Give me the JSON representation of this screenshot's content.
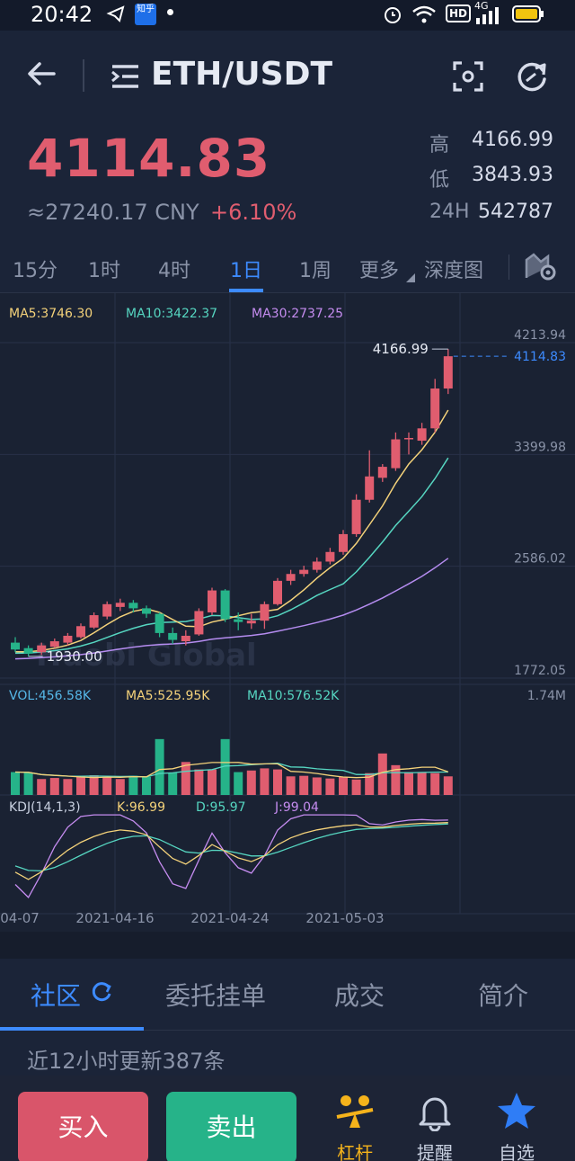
{
  "status": {
    "time": "20:42",
    "app_badge": "知乎",
    "hd": "HD",
    "net": "4G"
  },
  "header": {
    "pair": "ETH/USDT"
  },
  "price": {
    "last": "4114.83",
    "cny": "≈27240.17 CNY",
    "change": "+6.10%",
    "high_label": "高",
    "high": "4166.99",
    "low_label": "低",
    "low": "3843.93",
    "vol_label": "24H",
    "vol": "542787"
  },
  "tabs": [
    "15分",
    "1时",
    "4时",
    "1日",
    "1周",
    "更多",
    "深度图"
  ],
  "active_tab": "1日",
  "indicators": {
    "ma5": "MA5:3746.30",
    "ma10": "MA10:3422.37",
    "ma30": "MA30:2737.25",
    "vol": "VOL:456.58K",
    "vma5": "MA5:525.95K",
    "vma10": "MA10:576.52K",
    "vol_max": "1.74M",
    "kdj": "KDJ(14,1,3)",
    "k": "K:96.99",
    "d": "D:95.97",
    "j": "J:99.04"
  },
  "chart_data": {
    "type": "candlestick",
    "y_ticks": [
      "4213.94",
      "3399.98",
      "2586.02",
      "1772.05"
    ],
    "y_range": [
      1772.05,
      4213.94
    ],
    "last_price_label": "4114.83",
    "high_marker": "4166.99",
    "low_marker": "1930.00",
    "x_labels": [
      "04-07",
      "2021-04-16",
      "2021-04-24",
      "2021-05-03"
    ],
    "watermark": "Huobi Global",
    "candles": [
      {
        "o": 2030,
        "c": 1980,
        "h": 2070,
        "l": 1960
      },
      {
        "o": 1990,
        "c": 1950,
        "h": 2010,
        "l": 1930
      },
      {
        "o": 1960,
        "c": 2010,
        "h": 2030,
        "l": 1940
      },
      {
        "o": 2000,
        "c": 2040,
        "h": 2060,
        "l": 1990
      },
      {
        "o": 2030,
        "c": 2080,
        "h": 2100,
        "l": 2010
      },
      {
        "o": 2070,
        "c": 2150,
        "h": 2170,
        "l": 2060
      },
      {
        "o": 2140,
        "c": 2230,
        "h": 2250,
        "l": 2130
      },
      {
        "o": 2220,
        "c": 2310,
        "h": 2330,
        "l": 2200
      },
      {
        "o": 2290,
        "c": 2320,
        "h": 2350,
        "l": 2260
      },
      {
        "o": 2320,
        "c": 2280,
        "h": 2340,
        "l": 2250
      },
      {
        "o": 2280,
        "c": 2240,
        "h": 2300,
        "l": 2210
      },
      {
        "o": 2240,
        "c": 2100,
        "h": 2250,
        "l": 2070
      },
      {
        "o": 2100,
        "c": 2050,
        "h": 2140,
        "l": 2020
      },
      {
        "o": 2040,
        "c": 2080,
        "h": 2120,
        "l": 2010
      },
      {
        "o": 2090,
        "c": 2260,
        "h": 2280,
        "l": 2080
      },
      {
        "o": 2250,
        "c": 2410,
        "h": 2430,
        "l": 2230
      },
      {
        "o": 2410,
        "c": 2200,
        "h": 2420,
        "l": 2180
      },
      {
        "o": 2200,
        "c": 2180,
        "h": 2250,
        "l": 2120
      },
      {
        "o": 2170,
        "c": 2190,
        "h": 2240,
        "l": 2130
      },
      {
        "o": 2190,
        "c": 2310,
        "h": 2330,
        "l": 2130
      },
      {
        "o": 2310,
        "c": 2480,
        "h": 2500,
        "l": 2300
      },
      {
        "o": 2480,
        "c": 2530,
        "h": 2560,
        "l": 2450
      },
      {
        "o": 2530,
        "c": 2560,
        "h": 2590,
        "l": 2510
      },
      {
        "o": 2560,
        "c": 2620,
        "h": 2650,
        "l": 2540
      },
      {
        "o": 2620,
        "c": 2690,
        "h": 2720,
        "l": 2600
      },
      {
        "o": 2690,
        "c": 2820,
        "h": 2850,
        "l": 2670
      },
      {
        "o": 2820,
        "c": 3070,
        "h": 3110,
        "l": 2800
      },
      {
        "o": 3070,
        "c": 3240,
        "h": 3430,
        "l": 3050
      },
      {
        "o": 3230,
        "c": 3310,
        "h": 3330,
        "l": 3200
      },
      {
        "o": 3300,
        "c": 3510,
        "h": 3560,
        "l": 3280
      },
      {
        "o": 3510,
        "c": 3520,
        "h": 3560,
        "l": 3400
      },
      {
        "o": 3500,
        "c": 3590,
        "h": 3630,
        "l": 3470
      },
      {
        "o": 3590,
        "c": 3880,
        "h": 3950,
        "l": 3560
      },
      {
        "o": 3880,
        "c": 4114.83,
        "h": 4166.99,
        "l": 3840
      }
    ],
    "volumes": [
      430,
      420,
      300,
      320,
      300,
      350,
      370,
      340,
      300,
      360,
      340,
      1050,
      420,
      620,
      480,
      480,
      1050,
      430,
      460,
      500,
      480,
      350,
      360,
      330,
      310,
      340,
      290,
      410,
      780,
      560,
      430,
      430,
      410,
      350
    ]
  }
}
